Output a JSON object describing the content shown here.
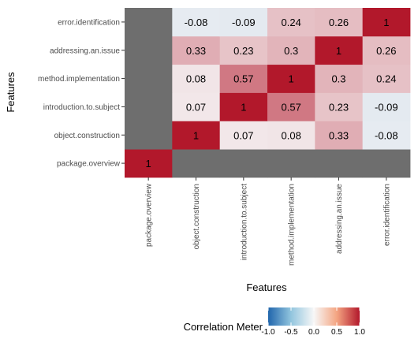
{
  "chart_data": {
    "type": "heatmap",
    "features": [
      "package.overview",
      "object.construction",
      "introduction.to.subject",
      "method.implementation",
      "addressing.an.issue",
      "error.identification"
    ],
    "matrix": [
      [
        1,
        null,
        null,
        null,
        null,
        null
      ],
      [
        null,
        1,
        0.07,
        0.08,
        0.33,
        -0.08
      ],
      [
        null,
        0.07,
        1,
        0.57,
        0.23,
        -0.09
      ],
      [
        null,
        0.08,
        0.57,
        1,
        0.3,
        0.24
      ],
      [
        null,
        0.33,
        0.23,
        0.3,
        1,
        0.26
      ],
      [
        null,
        -0.08,
        -0.09,
        0.24,
        0.26,
        1
      ]
    ],
    "xlabel": "Features",
    "ylabel": "Features",
    "legend": {
      "title": "Correlation Meter",
      "ticks": [
        "-1.0",
        "-0.5",
        "0.0",
        "0.5",
        "1.0"
      ],
      "range": [
        -1,
        1
      ],
      "placement": "bottom"
    },
    "colors": {
      "low": "#2166ac",
      "mid": "#f7f7f7",
      "high": "#b2182b",
      "na": "#6e6e6e",
      "panel": "#ebebeb"
    }
  }
}
